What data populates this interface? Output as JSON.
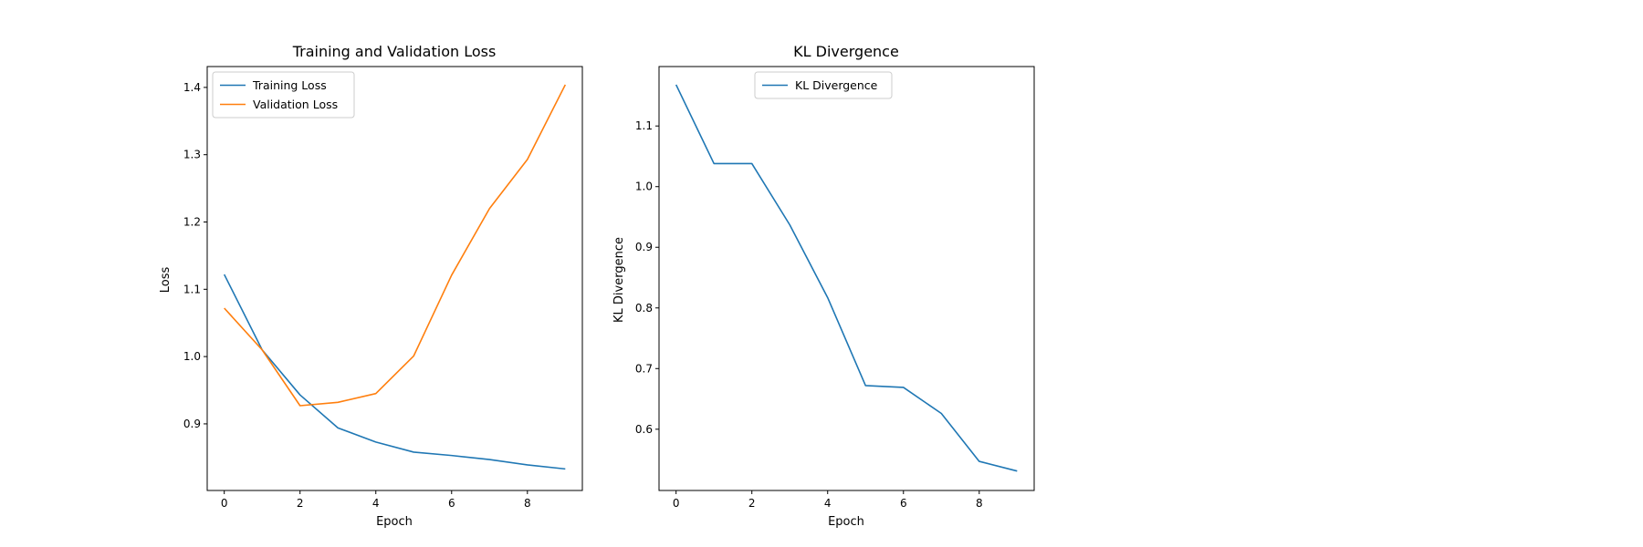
{
  "colors": {
    "training": "#1f77b4",
    "validation": "#ff7f0e",
    "kl": "#1f77b4"
  },
  "chart_data": [
    {
      "type": "line",
      "title": "Training and Validation Loss",
      "xlabel": "Epoch",
      "ylabel": "Loss",
      "xlim": [
        -0.45,
        9.45
      ],
      "ylim": [
        0.801,
        1.431
      ],
      "xticks": [
        "0",
        "2",
        "4",
        "6",
        "8"
      ],
      "yticks": [
        "0.9",
        "1.0",
        "1.1",
        "1.2",
        "1.3",
        "1.4"
      ],
      "grid": false,
      "legend_position": "upper left",
      "x": [
        0,
        1,
        2,
        3,
        4,
        5,
        6,
        7,
        8,
        9
      ],
      "series": [
        {
          "name": "Training Loss",
          "color": "#1f77b4",
          "values": [
            1.122,
            1.01,
            0.943,
            0.894,
            0.873,
            0.858,
            0.853,
            0.847,
            0.839,
            0.833
          ]
        },
        {
          "name": "Validation Loss",
          "color": "#ff7f0e",
          "values": [
            1.072,
            1.01,
            0.927,
            0.932,
            0.945,
            1.001,
            1.121,
            1.22,
            1.293,
            1.404
          ]
        }
      ]
    },
    {
      "type": "line",
      "title": "KL Divergence",
      "xlabel": "Epoch",
      "ylabel": "KL Divergence",
      "xlim": [
        -0.45,
        9.45
      ],
      "ylim": [
        0.499,
        1.198
      ],
      "xticks": [
        "0",
        "2",
        "4",
        "6",
        "8"
      ],
      "yticks": [
        "0.6",
        "0.7",
        "0.8",
        "0.9",
        "1.0",
        "1.1"
      ],
      "grid": false,
      "legend_position": "upper right",
      "x": [
        0,
        1,
        2,
        3,
        4,
        5,
        6,
        7,
        8,
        9
      ],
      "series": [
        {
          "name": "KL Divergence",
          "color": "#1f77b4",
          "values": [
            1.168,
            1.038,
            1.038,
            0.937,
            0.817,
            0.672,
            0.669,
            0.626,
            0.547,
            0.531
          ]
        }
      ]
    }
  ]
}
